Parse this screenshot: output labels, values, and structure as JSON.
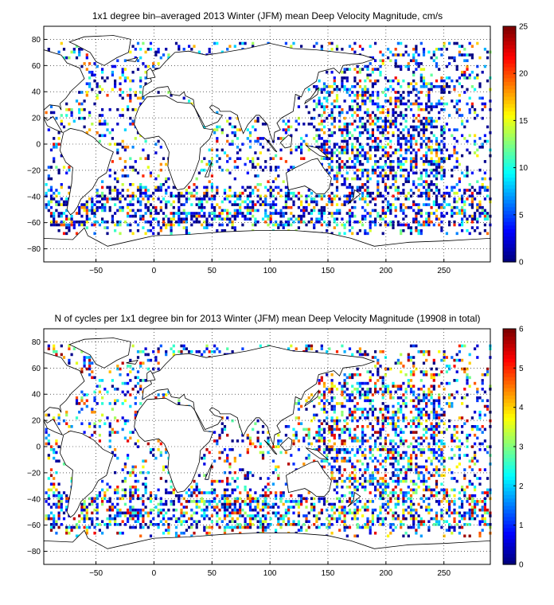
{
  "chart_data": [
    {
      "type": "heatmap",
      "title": "1x1 degree bin–averaged 2013 Winter (JFM) mean Deep Velocity Magnitude, cm/s",
      "xlabel": "",
      "ylabel": "",
      "xlim": [
        -95,
        290
      ],
      "ylim": [
        -90,
        90
      ],
      "xticks": [
        -50,
        0,
        50,
        100,
        150,
        200,
        250
      ],
      "yticks": [
        80,
        60,
        40,
        20,
        0,
        -20,
        -40,
        -60,
        -80
      ],
      "xtick_labels": [
        "−50",
        "0",
        "50",
        "100",
        "150",
        "200",
        "250"
      ],
      "ytick_labels": [
        "80",
        "60",
        "40",
        "20",
        "0",
        "−20",
        "−40",
        "−60",
        "−80"
      ],
      "colorbar": {
        "min": 0,
        "max": 25,
        "ticks": [
          "0",
          "5",
          "10",
          "15",
          "20",
          "25"
        ],
        "colormap": "jet"
      },
      "grid": true,
      "typical_value": 4
    },
    {
      "type": "heatmap",
      "title": "N of cycles per 1x1 degree bin for 2013 Winter (JFM) mean Deep Velocity Magnitude (19908 in total)",
      "xlabel": "",
      "ylabel": "",
      "xlim": [
        -95,
        290
      ],
      "ylim": [
        -90,
        90
      ],
      "xticks": [
        -50,
        0,
        50,
        100,
        150,
        200,
        250
      ],
      "yticks": [
        80,
        60,
        40,
        20,
        0,
        -20,
        -40,
        -60,
        -80
      ],
      "xtick_labels": [
        "−50",
        "0",
        "50",
        "100",
        "150",
        "200",
        "250"
      ],
      "ytick_labels": [
        "80",
        "60",
        "40",
        "20",
        "0",
        "−20",
        "−40",
        "−60",
        "−80"
      ],
      "colorbar": {
        "min": 0,
        "max": 6,
        "ticks": [
          "0",
          "1",
          "2",
          "3",
          "4",
          "5",
          "6"
        ],
        "colormap": "jet"
      },
      "grid": true,
      "typical_value": 1.8
    }
  ]
}
